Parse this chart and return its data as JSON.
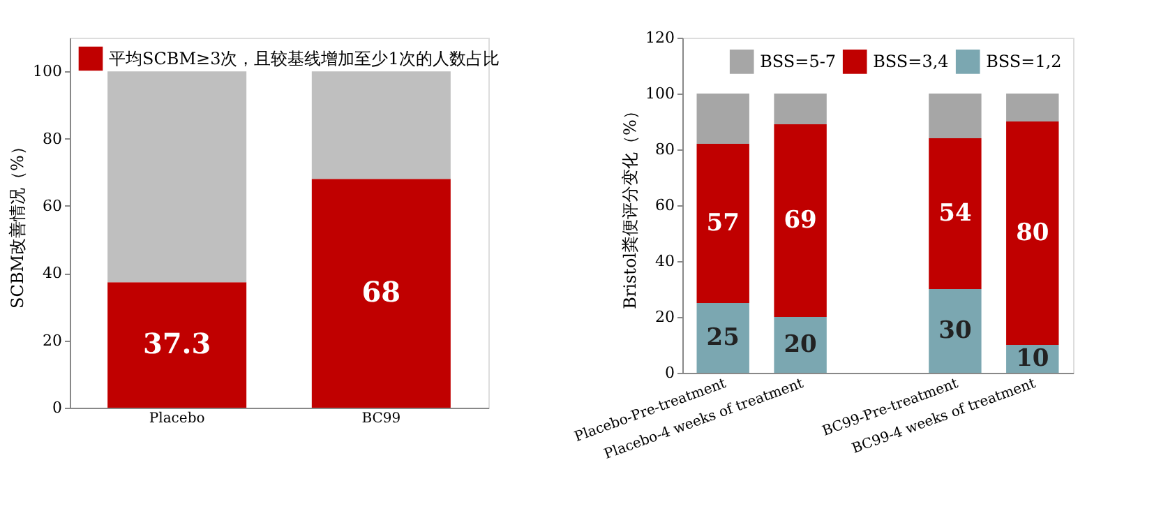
{
  "chart_data": [
    {
      "type": "bar",
      "stacked": true,
      "ylabel": "SCBM改善情况（%）",
      "categories": [
        "Placebo",
        "BC99"
      ],
      "ylim": [
        0,
        110
      ],
      "yticks": [
        0,
        20,
        40,
        60,
        80,
        100
      ],
      "grid": false,
      "legend": "top left",
      "series": [
        {
          "name": "平均SCBM≥3次，且较基线增加至少1次的人数占比",
          "color": "#c00000",
          "values": [
            37.3,
            68
          ],
          "value_labels": [
            "37.3",
            "68"
          ]
        },
        {
          "color": "#bfbfbf",
          "values": [
            62.7,
            32
          ]
        }
      ]
    },
    {
      "type": "bar",
      "stacked": true,
      "ylabel": "Bristol粪便评分变化（%）",
      "categories": [
        "Placebo-Pre-treatment",
        "Placebo-4  weeks of treatment",
        null,
        "BC99-Pre-treatment",
        "BC99-4  weeks of treatment"
      ],
      "ylim": [
        0,
        120
      ],
      "yticks": [
        0,
        20,
        40,
        60,
        80,
        100,
        120
      ],
      "grid": false,
      "legend": "top",
      "series": [
        {
          "name": "BSS=1,2",
          "color": "#7ba7b1",
          "values": [
            25,
            20,
            null,
            30,
            10
          ],
          "value_labels": [
            "25",
            "20",
            null,
            "30",
            "10"
          ]
        },
        {
          "name": "BSS=3,4",
          "color": "#c00000",
          "values": [
            57,
            69,
            null,
            54,
            80
          ],
          "value_labels": [
            "57",
            "69",
            null,
            "54",
            "80"
          ]
        },
        {
          "name": "BSS=5-7",
          "color": "#a6a6a6",
          "values": [
            18,
            11,
            null,
            16,
            10
          ]
        }
      ]
    }
  ]
}
